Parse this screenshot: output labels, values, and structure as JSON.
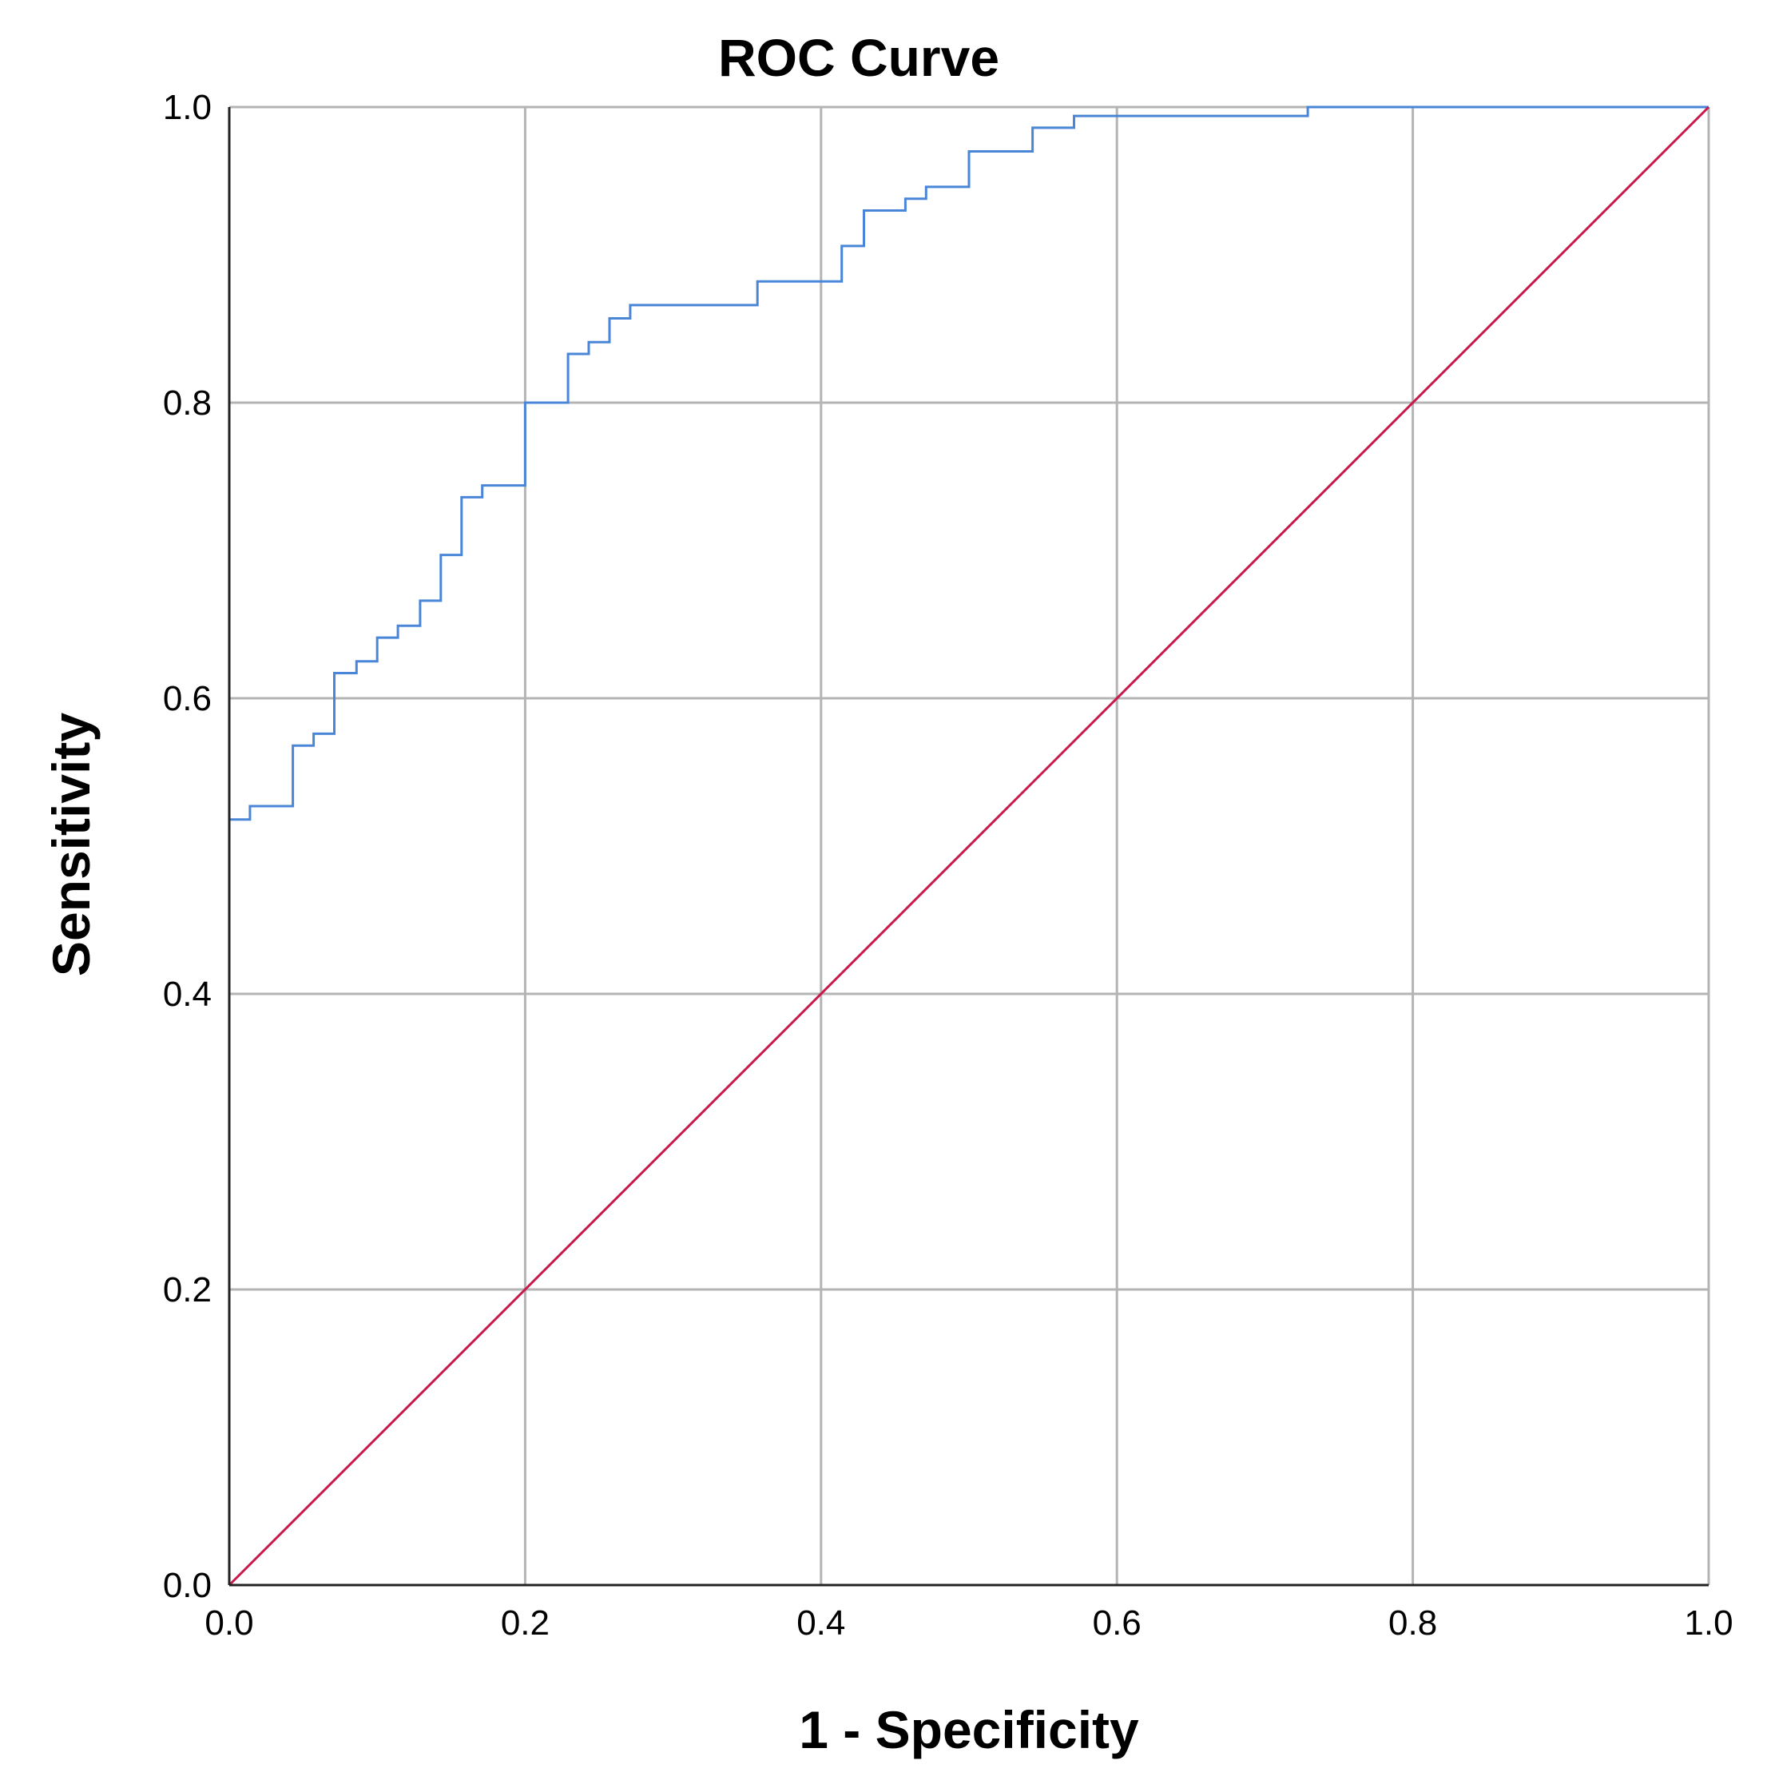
{
  "chart_data": {
    "type": "line",
    "title": "ROC Curve",
    "xlabel": "1 - Specificity",
    "ylabel": "Sensitivity",
    "xlim": [
      0,
      1
    ],
    "ylim": [
      0,
      1
    ],
    "x_ticks": [
      "0.0",
      "0.2",
      "0.4",
      "0.6",
      "0.8",
      "1.0"
    ],
    "y_ticks": [
      "0.0",
      "0.2",
      "0.4",
      "0.6",
      "0.8",
      "1.0"
    ],
    "grid": true,
    "legend": "none",
    "series": [
      {
        "color": "#4a86d8",
        "style": "step",
        "points": [
          [
            0.0,
            0.0
          ],
          [
            0.0,
            0.518
          ],
          [
            0.014,
            0.518
          ],
          [
            0.014,
            0.527
          ],
          [
            0.043,
            0.527
          ],
          [
            0.043,
            0.568
          ],
          [
            0.057,
            0.568
          ],
          [
            0.057,
            0.576
          ],
          [
            0.071,
            0.576
          ],
          [
            0.071,
            0.617
          ],
          [
            0.086,
            0.617
          ],
          [
            0.086,
            0.625
          ],
          [
            0.1,
            0.625
          ],
          [
            0.1,
            0.641
          ],
          [
            0.114,
            0.641
          ],
          [
            0.114,
            0.649
          ],
          [
            0.129,
            0.649
          ],
          [
            0.129,
            0.666
          ],
          [
            0.143,
            0.666
          ],
          [
            0.143,
            0.697
          ],
          [
            0.157,
            0.697
          ],
          [
            0.157,
            0.736
          ],
          [
            0.171,
            0.736
          ],
          [
            0.171,
            0.744
          ],
          [
            0.2,
            0.744
          ],
          [
            0.2,
            0.8
          ],
          [
            0.229,
            0.8
          ],
          [
            0.229,
            0.833
          ],
          [
            0.243,
            0.833
          ],
          [
            0.243,
            0.841
          ],
          [
            0.257,
            0.841
          ],
          [
            0.257,
            0.857
          ],
          [
            0.271,
            0.857
          ],
          [
            0.271,
            0.866
          ],
          [
            0.357,
            0.866
          ],
          [
            0.357,
            0.882
          ],
          [
            0.414,
            0.882
          ],
          [
            0.414,
            0.906
          ],
          [
            0.429,
            0.906
          ],
          [
            0.429,
            0.93
          ],
          [
            0.457,
            0.93
          ],
          [
            0.457,
            0.938
          ],
          [
            0.471,
            0.938
          ],
          [
            0.471,
            0.946
          ],
          [
            0.5,
            0.946
          ],
          [
            0.5,
            0.97
          ],
          [
            0.543,
            0.97
          ],
          [
            0.543,
            0.986
          ],
          [
            0.571,
            0.986
          ],
          [
            0.571,
            0.994
          ],
          [
            0.729,
            0.994
          ],
          [
            0.729,
            1.0
          ],
          [
            1.0,
            1.0
          ]
        ]
      },
      {
        "color": "#c8194b",
        "style": "line",
        "points": [
          [
            0.0,
            0.0
          ],
          [
            1.0,
            1.0
          ]
        ]
      }
    ]
  }
}
